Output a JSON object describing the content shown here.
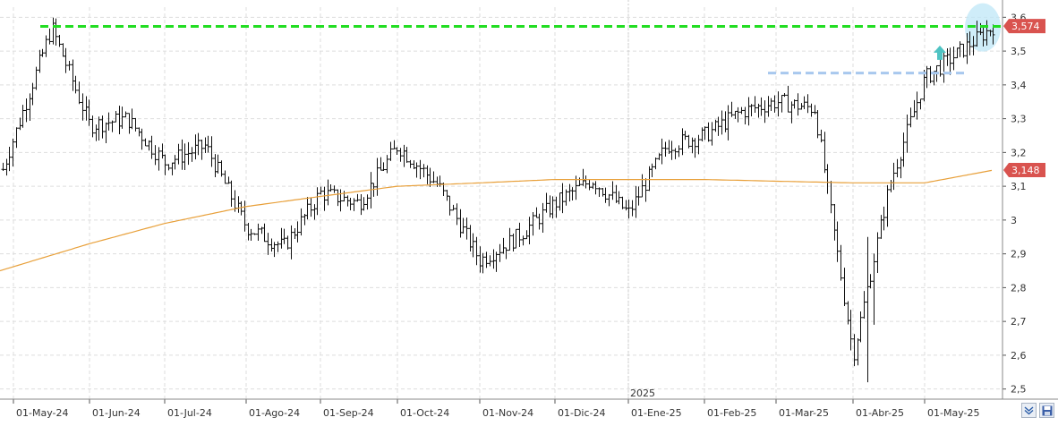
{
  "chart_data": {
    "type": "ohlc",
    "ylim": [
      2.47,
      3.63
    ],
    "y_ticks": [
      "3,6",
      "3,5",
      "3,4",
      "3,3",
      "3,2",
      "3,1",
      "3",
      "2,9",
      "2,8",
      "2,7",
      "2,6",
      "2,5"
    ],
    "x_labels": [
      "01-May-24",
      "01-Jun-24",
      "01-Jul-24",
      "01-Ago-24",
      "01-Sep-24",
      "01-Oct-24",
      "01-Nov-24",
      "01-Dic-24",
      "01-Ene-25",
      "01-Feb-25",
      "01-Mar-25",
      "01-Abr-25",
      "01-May-25"
    ],
    "year_label": "2025",
    "price_badge": {
      "label": "3,574",
      "value": 3.574,
      "color": "#d9534f"
    },
    "ma_badge": {
      "label": "3,148",
      "value": 3.148,
      "color": "#d9534f"
    },
    "moving_average_color": "#e8a03a",
    "series_anchors": [
      [
        "01-May-24",
        3.15
      ],
      [
        "Mid-May-24",
        3.57
      ],
      [
        "01-Jun-24",
        3.28
      ],
      [
        "Mid-Jun-24",
        3.3
      ],
      [
        "01-Jul-24",
        3.17
      ],
      [
        "Mid-Jul-24",
        3.22
      ],
      [
        "01-Ago-24",
        2.98
      ],
      [
        "Mid-Ago-24",
        2.92
      ],
      [
        "01-Sep-24",
        3.08
      ],
      [
        "Mid-Sep-24",
        3.05
      ],
      [
        "01-Oct-24",
        3.22
      ],
      [
        "Mid-Oct-24",
        3.1
      ],
      [
        "01-Nov-24",
        2.88
      ],
      [
        "Mid-Nov-24",
        2.95
      ],
      [
        "01-Dic-24",
        3.05
      ],
      [
        "Mid-Dic-24",
        3.12
      ],
      [
        "01-Ene-25",
        3.02
      ],
      [
        "Mid-Ene-25",
        3.22
      ],
      [
        "01-Feb-25",
        3.25
      ],
      [
        "Mid-Feb-25",
        3.32
      ],
      [
        "01-Mar-25",
        3.35
      ],
      [
        "Mid-Mar-25",
        3.33
      ],
      [
        "01-Abr-25",
        2.6
      ],
      [
        "Mid-Abr-25",
        3.1
      ],
      [
        "01-May-25",
        3.42
      ],
      [
        "Late-May-25",
        3.574
      ]
    ],
    "moving_average_anchors": [
      [
        "01-May-24",
        2.85
      ],
      [
        "01-Jun-24",
        2.93
      ],
      [
        "01-Jul-24",
        2.99
      ],
      [
        "01-Ago-24",
        3.04
      ],
      [
        "01-Sep-24",
        3.07
      ],
      [
        "01-Oct-24",
        3.1
      ],
      [
        "01-Nov-24",
        3.11
      ],
      [
        "01-Dic-24",
        3.12
      ],
      [
        "01-Ene-25",
        3.12
      ],
      [
        "01-Feb-25",
        3.12
      ],
      [
        "01-Mar-25",
        3.115
      ],
      [
        "01-Abr-25",
        3.11
      ],
      [
        "01-May-25",
        3.11
      ],
      [
        "Late-May-25",
        3.148
      ]
    ],
    "annotations": [
      {
        "type": "hline",
        "value": 3.573,
        "color": "#22dd22",
        "style": "dashed"
      },
      {
        "type": "hline",
        "value": 3.435,
        "color": "#a8c8ee",
        "style": "dashed"
      },
      {
        "type": "arrow-up",
        "color": "#4fc3c3"
      },
      {
        "type": "ellipse-highlight",
        "color": "#bfe7f7"
      }
    ]
  },
  "controls": {
    "scroll_icon": "double-chevron-down-icon",
    "save_icon": "floppy-disk-icon"
  }
}
